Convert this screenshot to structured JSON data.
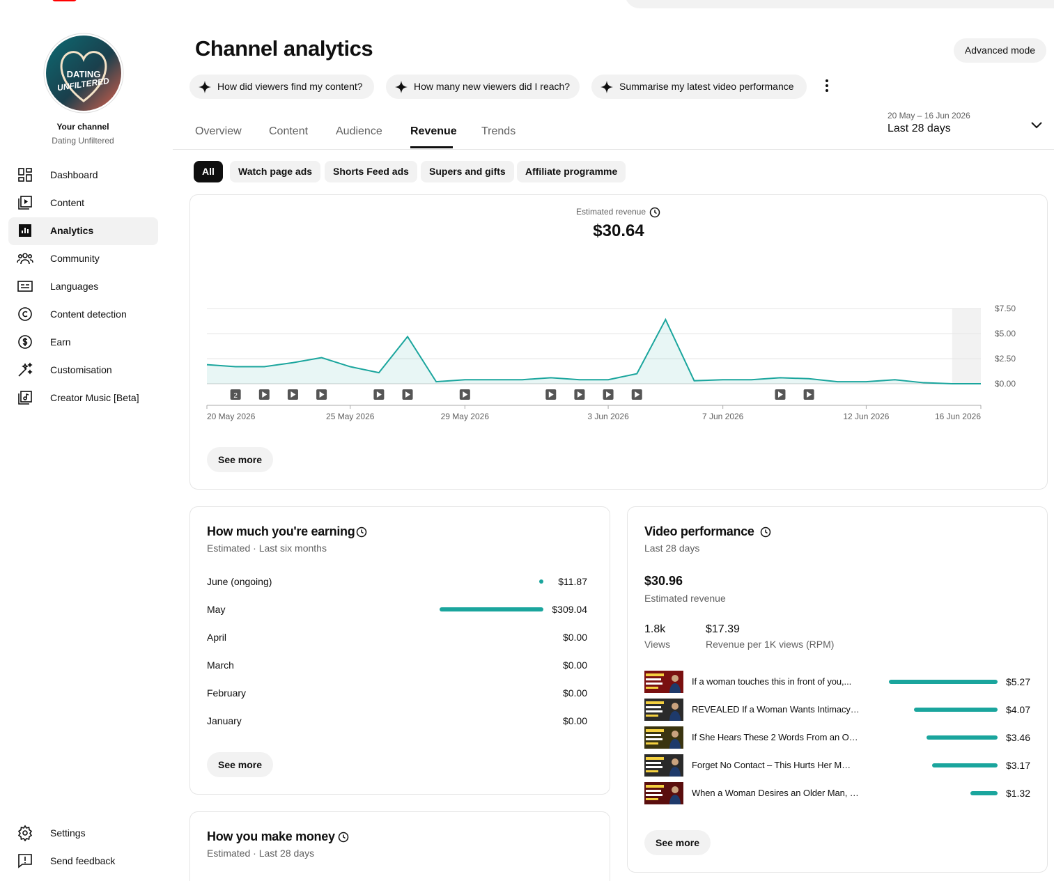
{
  "sidebar": {
    "logo_text": [
      "DATING",
      "UNFILTERED"
    ],
    "channel_label": "Your channel",
    "channel_name": "Dating Unfiltered",
    "nav": [
      "Dashboard",
      "Content",
      "Analytics",
      "Community",
      "Languages",
      "Content detection",
      "Earn",
      "Customisation",
      "Creator Music [Beta]"
    ],
    "footer": [
      "Settings",
      "Send feedback"
    ]
  },
  "header": {
    "title": "Channel analytics",
    "advanced_mode": "Advanced mode",
    "prompts": [
      "How did viewers find my content?",
      "How many new viewers did I reach?",
      "Summarise my latest video performance"
    ],
    "tabs": [
      "Overview",
      "Content",
      "Audience",
      "Revenue",
      "Trends"
    ],
    "date_range": "20 May – 16 Jun 2026",
    "period": "Last 28 days"
  },
  "filters": [
    "All",
    "Watch page ads",
    "Shorts Feed ads",
    "Supers and gifts",
    "Affiliate programme"
  ],
  "chart_data": {
    "type": "line",
    "title": "Estimated revenue",
    "headline": "$30.64",
    "categories": [
      "20 May 2026",
      null,
      null,
      null,
      null,
      "25 May 2026",
      null,
      null,
      null,
      "29 May 2026",
      null,
      null,
      null,
      null,
      "3 Jun 2026",
      null,
      null,
      null,
      "7 Jun 2026",
      null,
      null,
      null,
      null,
      "12 Jun 2026",
      null,
      null,
      null,
      "16 Jun 2026"
    ],
    "values": [
      1.9,
      1.7,
      1.7,
      2.1,
      2.6,
      1.7,
      1.1,
      4.7,
      0.2,
      0.4,
      0.4,
      0.4,
      0.6,
      0.4,
      0.4,
      1.0,
      6.4,
      0.3,
      0.4,
      0.4,
      0.6,
      0.5,
      0.2,
      0.2,
      0.4,
      0.1,
      0,
      0
    ],
    "color": "#1aa59d",
    "ylim": [
      0,
      7.5
    ],
    "yticks": [
      {
        "value": 0,
        "label": "$0.00"
      },
      {
        "value": 2.5,
        "label": "$2.50"
      },
      {
        "value": 5,
        "label": "$5.00"
      },
      {
        "value": 7.5,
        "label": "$7.50"
      }
    ],
    "grid": true,
    "upload_badge": "2",
    "see_more": "See more"
  },
  "earnings": {
    "title": "How much you're earning",
    "subtitle": "Estimated · Last six months",
    "months": [
      "June (ongoing)",
      "May",
      "April",
      "March",
      "February",
      "January"
    ],
    "values": [
      11.87,
      309.04,
      0,
      0,
      0,
      0
    ],
    "value_labels": [
      "$11.87",
      "$309.04",
      "$0.00",
      "$0.00",
      "$0.00",
      "$0.00"
    ],
    "color": "#1aa59d",
    "see_more": "See more"
  },
  "money": {
    "title": "How you make money",
    "subtitle": "Estimated · Last 28 days"
  },
  "video_performance": {
    "title": "Video performance",
    "subtitle": "Last 28 days",
    "revenue": "$30.96",
    "revenue_label": "Estimated revenue",
    "views": "1.8k",
    "views_label": "Views",
    "rpm": "$17.39",
    "rpm_label": "Revenue per 1K views (RPM)",
    "videos": [
      "If a woman touches this in front of you,...",
      "REVEALED If a Woman Wants Intimacy…",
      "If She Hears These 2 Words From an O…",
      "Forget No Contact – This Hurts Her M…",
      "When a Woman Desires an Older Man, …"
    ],
    "values": [
      5.27,
      4.07,
      3.46,
      3.17,
      1.32
    ],
    "value_labels": [
      "$5.27",
      "$4.07",
      "$3.46",
      "$3.17",
      "$1.32"
    ],
    "color": "#1aa59d",
    "see_more": "See more"
  }
}
